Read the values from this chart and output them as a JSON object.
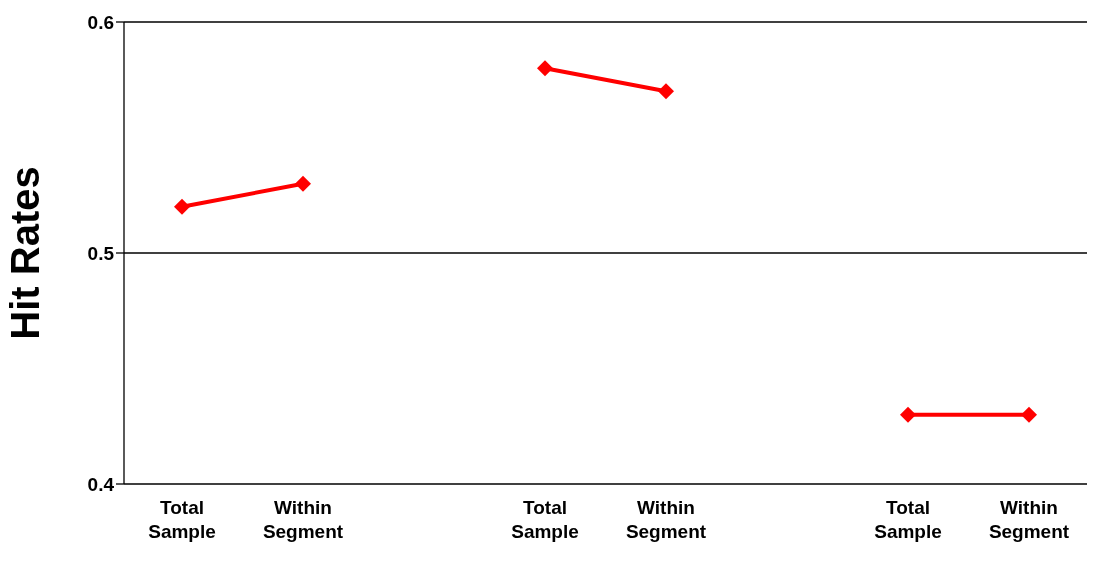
{
  "chart_data": {
    "type": "line",
    "ylabel": "Hit Rates",
    "categories": [
      "Total Sample",
      "Within Segment",
      null,
      "Total Sample",
      "Within Segment",
      null,
      "Total Sample",
      "Within Segment"
    ],
    "series": [
      {
        "color": "#ff0000",
        "values": [
          0.52,
          0.53,
          null,
          0.58,
          0.57,
          null,
          0.43,
          0.43
        ]
      }
    ],
    "ylim": [
      0.4,
      0.6
    ],
    "yticks": [
      0.4,
      0.5,
      0.6
    ],
    "grid": "y",
    "legend": false,
    "marker": "diamond",
    "line_style": "solid"
  }
}
